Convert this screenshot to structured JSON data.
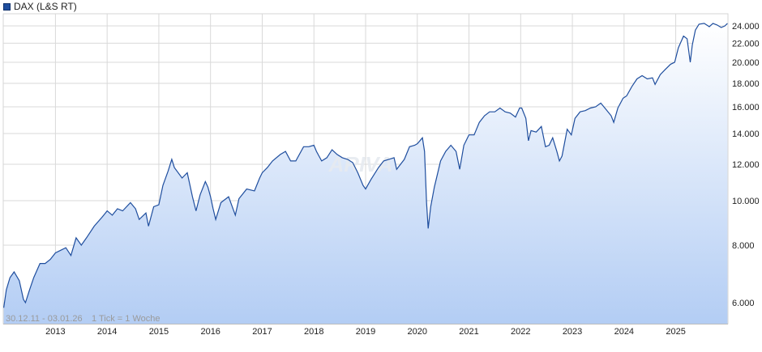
{
  "legend": {
    "label": "DAX (L&S RT)",
    "color": "#1f4e9e"
  },
  "footer": {
    "range": "30.12.11 - 03.01.26",
    "tick": "1 Tick = 1 Woche"
  },
  "watermark": "ARIVA",
  "chart_data": {
    "type": "area",
    "title": "",
    "series": [
      {
        "name": "DAX (L&S RT)",
        "color": "#1f4e9e"
      }
    ],
    "y_scale": "log",
    "ylim": [
      5400,
      25500
    ],
    "xlim": [
      2011.99,
      2026.01
    ],
    "grid": true,
    "legend_position": "top-left",
    "y_ticks": [
      {
        "value": 6000,
        "label": "6.000"
      },
      {
        "value": 8000,
        "label": "8.000"
      },
      {
        "value": 10000,
        "label": "10.000"
      },
      {
        "value": 12000,
        "label": "12.000"
      },
      {
        "value": 14000,
        "label": "14.000"
      },
      {
        "value": 16000,
        "label": "16.000"
      },
      {
        "value": 18000,
        "label": "18.000"
      },
      {
        "value": 20000,
        "label": "20.000"
      },
      {
        "value": 22000,
        "label": "22.000"
      },
      {
        "value": 24000,
        "label": "24.000"
      }
    ],
    "x_ticks": [
      {
        "value": 2013.0,
        "label": "2013"
      },
      {
        "value": 2014.0,
        "label": "2014"
      },
      {
        "value": 2015.0,
        "label": "2015"
      },
      {
        "value": 2016.0,
        "label": "2016"
      },
      {
        "value": 2017.0,
        "label": "2017"
      },
      {
        "value": 2018.0,
        "label": "2018"
      },
      {
        "value": 2019.0,
        "label": "2019"
      },
      {
        "value": 2020.0,
        "label": "2020"
      },
      {
        "value": 2021.0,
        "label": "2021"
      },
      {
        "value": 2022.0,
        "label": "2022"
      },
      {
        "value": 2023.0,
        "label": "2023"
      },
      {
        "value": 2024.0,
        "label": "2024"
      },
      {
        "value": 2025.0,
        "label": "2025"
      }
    ],
    "points": [
      [
        2012.0,
        5850
      ],
      [
        2012.05,
        6400
      ],
      [
        2012.12,
        6800
      ],
      [
        2012.2,
        7000
      ],
      [
        2012.3,
        6700
      ],
      [
        2012.38,
        6100
      ],
      [
        2012.42,
        6000
      ],
      [
        2012.5,
        6400
      ],
      [
        2012.58,
        6800
      ],
      [
        2012.7,
        7300
      ],
      [
        2012.8,
        7300
      ],
      [
        2012.9,
        7450
      ],
      [
        2013.0,
        7700
      ],
      [
        2013.1,
        7800
      ],
      [
        2013.2,
        7900
      ],
      [
        2013.3,
        7600
      ],
      [
        2013.4,
        8300
      ],
      [
        2013.5,
        8000
      ],
      [
        2013.6,
        8300
      ],
      [
        2013.75,
        8800
      ],
      [
        2013.9,
        9200
      ],
      [
        2014.0,
        9500
      ],
      [
        2014.1,
        9300
      ],
      [
        2014.2,
        9600
      ],
      [
        2014.3,
        9500
      ],
      [
        2014.45,
        9900
      ],
      [
        2014.55,
        9600
      ],
      [
        2014.62,
        9100
      ],
      [
        2014.75,
        9400
      ],
      [
        2014.8,
        8800
      ],
      [
        2014.9,
        9700
      ],
      [
        2015.0,
        9800
      ],
      [
        2015.08,
        10800
      ],
      [
        2015.18,
        11600
      ],
      [
        2015.25,
        12300
      ],
      [
        2015.3,
        11800
      ],
      [
        2015.45,
        11200
      ],
      [
        2015.55,
        11500
      ],
      [
        2015.65,
        10200
      ],
      [
        2015.72,
        9500
      ],
      [
        2015.8,
        10300
      ],
      [
        2015.9,
        11000
      ],
      [
        2015.95,
        10700
      ],
      [
        2016.0,
        10200
      ],
      [
        2016.05,
        9600
      ],
      [
        2016.1,
        9100
      ],
      [
        2016.2,
        9900
      ],
      [
        2016.35,
        10200
      ],
      [
        2016.48,
        9300
      ],
      [
        2016.55,
        10100
      ],
      [
        2016.7,
        10600
      ],
      [
        2016.85,
        10500
      ],
      [
        2016.95,
        11200
      ],
      [
        2017.0,
        11500
      ],
      [
        2017.1,
        11800
      ],
      [
        2017.2,
        12200
      ],
      [
        2017.35,
        12600
      ],
      [
        2017.45,
        12800
      ],
      [
        2017.55,
        12200
      ],
      [
        2017.65,
        12200
      ],
      [
        2017.8,
        13100
      ],
      [
        2017.9,
        13100
      ],
      [
        2018.0,
        13200
      ],
      [
        2018.05,
        12800
      ],
      [
        2018.15,
        12200
      ],
      [
        2018.25,
        12400
      ],
      [
        2018.35,
        12900
      ],
      [
        2018.45,
        12600
      ],
      [
        2018.55,
        12400
      ],
      [
        2018.65,
        12300
      ],
      [
        2018.75,
        12100
      ],
      [
        2018.85,
        11500
      ],
      [
        2018.95,
        10800
      ],
      [
        2019.0,
        10600
      ],
      [
        2019.1,
        11100
      ],
      [
        2019.25,
        11800
      ],
      [
        2019.35,
        12200
      ],
      [
        2019.45,
        12300
      ],
      [
        2019.55,
        12400
      ],
      [
        2019.6,
        11700
      ],
      [
        2019.75,
        12300
      ],
      [
        2019.85,
        13100
      ],
      [
        2019.95,
        13200
      ],
      [
        2020.0,
        13300
      ],
      [
        2020.1,
        13700
      ],
      [
        2020.14,
        12800
      ],
      [
        2020.18,
        9900
      ],
      [
        2020.21,
        8700
      ],
      [
        2020.26,
        9700
      ],
      [
        2020.33,
        10700
      ],
      [
        2020.45,
        12200
      ],
      [
        2020.55,
        12800
      ],
      [
        2020.65,
        13200
      ],
      [
        2020.75,
        12800
      ],
      [
        2020.82,
        11700
      ],
      [
        2020.9,
        13200
      ],
      [
        2021.0,
        13900
      ],
      [
        2021.1,
        13900
      ],
      [
        2021.2,
        14800
      ],
      [
        2021.3,
        15300
      ],
      [
        2021.4,
        15600
      ],
      [
        2021.5,
        15600
      ],
      [
        2021.6,
        15900
      ],
      [
        2021.7,
        15600
      ],
      [
        2021.8,
        15500
      ],
      [
        2021.9,
        15200
      ],
      [
        2021.98,
        15900
      ],
      [
        2022.02,
        15900
      ],
      [
        2022.1,
        15100
      ],
      [
        2022.15,
        13500
      ],
      [
        2022.2,
        14200
      ],
      [
        2022.3,
        14100
      ],
      [
        2022.4,
        14500
      ],
      [
        2022.48,
        13100
      ],
      [
        2022.55,
        13200
      ],
      [
        2022.62,
        13700
      ],
      [
        2022.7,
        12800
      ],
      [
        2022.75,
        12200
      ],
      [
        2022.8,
        12500
      ],
      [
        2022.9,
        14300
      ],
      [
        2022.98,
        13900
      ],
      [
        2023.05,
        15100
      ],
      [
        2023.15,
        15600
      ],
      [
        2023.25,
        15700
      ],
      [
        2023.35,
        15900
      ],
      [
        2023.45,
        16000
      ],
      [
        2023.55,
        16300
      ],
      [
        2023.65,
        15800
      ],
      [
        2023.75,
        15300
      ],
      [
        2023.8,
        14800
      ],
      [
        2023.88,
        15900
      ],
      [
        2023.98,
        16700
      ],
      [
        2024.05,
        16900
      ],
      [
        2024.15,
        17700
      ],
      [
        2024.25,
        18400
      ],
      [
        2024.35,
        18700
      ],
      [
        2024.45,
        18400
      ],
      [
        2024.55,
        18500
      ],
      [
        2024.6,
        17900
      ],
      [
        2024.7,
        18800
      ],
      [
        2024.8,
        19300
      ],
      [
        2024.9,
        19800
      ],
      [
        2024.98,
        20000
      ],
      [
        2025.05,
        21500
      ],
      [
        2025.15,
        22800
      ],
      [
        2025.22,
        22500
      ],
      [
        2025.28,
        20000
      ],
      [
        2025.32,
        21800
      ],
      [
        2025.38,
        23500
      ],
      [
        2025.45,
        24200
      ],
      [
        2025.55,
        24300
      ],
      [
        2025.65,
        23900
      ],
      [
        2025.72,
        24300
      ],
      [
        2025.8,
        24100
      ],
      [
        2025.88,
        23800
      ],
      [
        2025.95,
        24000
      ],
      [
        2026.0,
        24300
      ]
    ]
  }
}
